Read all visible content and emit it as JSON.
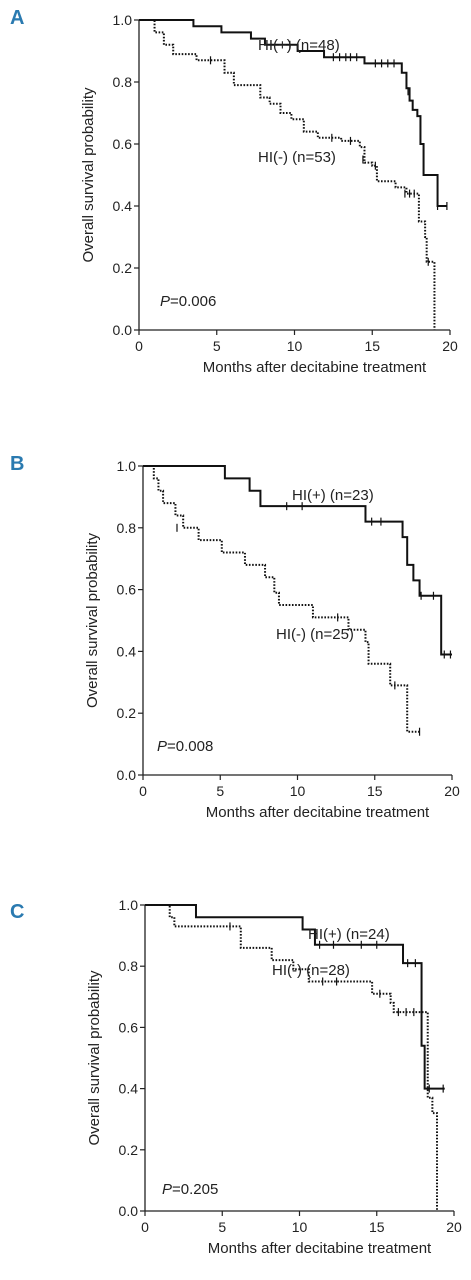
{
  "chart_data": [
    {
      "panel": "A",
      "type": "line",
      "xlabel": "Months after decitabine treatment",
      "ylabel": "Overall survival probability",
      "xlim": [
        0,
        20
      ],
      "ylim": [
        0,
        1
      ],
      "xticks": [
        "0",
        "5",
        "10",
        "15",
        "20"
      ],
      "yticks": [
        "0.0",
        "0.2",
        "0.4",
        "0.6",
        "0.8",
        "1.0"
      ],
      "p_prefix": "P",
      "p_value": "=0.006",
      "series": [
        {
          "name": "HI(+) (n=48)",
          "style": "solid",
          "steps": [
            [
              0,
              1.0
            ],
            [
              3.5,
              0.98
            ],
            [
              5.3,
              0.96
            ],
            [
              7.2,
              0.94
            ],
            [
              8.1,
              0.92
            ],
            [
              9.7,
              0.92
            ],
            [
              10.2,
              0.9
            ],
            [
              11.9,
              0.88
            ],
            [
              14.5,
              0.86
            ],
            [
              16.9,
              0.83
            ],
            [
              17.2,
              0.78
            ],
            [
              17.4,
              0.74
            ],
            [
              17.6,
              0.71
            ],
            [
              17.9,
              0.69
            ],
            [
              18.1,
              0.6
            ],
            [
              18.3,
              0.5
            ],
            [
              19.2,
              0.4
            ],
            [
              19.8,
              0.4
            ]
          ],
          "censored": [
            [
              9.7,
              0.92
            ],
            [
              12.5,
              0.88
            ],
            [
              12.9,
              0.88
            ],
            [
              13.3,
              0.88
            ],
            [
              13.6,
              0.88
            ],
            [
              14.0,
              0.88
            ],
            [
              15.2,
              0.86
            ],
            [
              15.6,
              0.86
            ],
            [
              16.0,
              0.86
            ],
            [
              16.4,
              0.86
            ],
            [
              17.3,
              0.77
            ],
            [
              19.2,
              0.4
            ],
            [
              19.8,
              0.4
            ]
          ]
        },
        {
          "name": "HI(-) (n=53)",
          "style": "dotted",
          "steps": [
            [
              0,
              1.0
            ],
            [
              1.0,
              0.96
            ],
            [
              1.6,
              0.92
            ],
            [
              2.2,
              0.89
            ],
            [
              3.7,
              0.87
            ],
            [
              5.5,
              0.83
            ],
            [
              6.1,
              0.79
            ],
            [
              7.8,
              0.75
            ],
            [
              8.4,
              0.73
            ],
            [
              9.1,
              0.7
            ],
            [
              9.8,
              0.68
            ],
            [
              10.6,
              0.64
            ],
            [
              11.5,
              0.62
            ],
            [
              13.0,
              0.61
            ],
            [
              14.2,
              0.59
            ],
            [
              14.5,
              0.54
            ],
            [
              15.0,
              0.53
            ],
            [
              15.3,
              0.48
            ],
            [
              16.5,
              0.46
            ],
            [
              17.2,
              0.44
            ],
            [
              18.0,
              0.35
            ],
            [
              18.4,
              0.3
            ],
            [
              18.5,
              0.22
            ],
            [
              19.0,
              0.0
            ]
          ],
          "censored": [
            [
              4.6,
              0.87
            ],
            [
              12.4,
              0.62
            ],
            [
              13.6,
              0.61
            ],
            [
              14.4,
              0.55
            ],
            [
              15.2,
              0.53
            ],
            [
              17.1,
              0.44
            ],
            [
              17.4,
              0.44
            ],
            [
              17.7,
              0.44
            ],
            [
              18.6,
              0.22
            ]
          ]
        }
      ]
    },
    {
      "panel": "B",
      "type": "line",
      "xlabel": "Months after decitabine treatment",
      "ylabel": "Overall survival probability",
      "xlim": [
        0,
        20
      ],
      "ylim": [
        0,
        1
      ],
      "xticks": [
        "0",
        "5",
        "10",
        "15",
        "20"
      ],
      "yticks": [
        "0.0",
        "0.2",
        "0.4",
        "0.6",
        "0.8",
        "1.0"
      ],
      "p_prefix": "P",
      "p_value": "=0.008",
      "series": [
        {
          "name": "HI(+) (n=23)",
          "style": "solid",
          "steps": [
            [
              0,
              1.0
            ],
            [
              5.3,
              0.96
            ],
            [
              6.9,
              0.92
            ],
            [
              7.6,
              0.87
            ],
            [
              14.4,
              0.82
            ],
            [
              16.8,
              0.77
            ],
            [
              17.1,
              0.68
            ],
            [
              17.5,
              0.63
            ],
            [
              17.9,
              0.58
            ],
            [
              19.3,
              0.39
            ],
            [
              20.0,
              0.39
            ]
          ],
          "censored": [
            [
              9.3,
              0.87
            ],
            [
              10.3,
              0.87
            ],
            [
              14.8,
              0.82
            ],
            [
              15.4,
              0.82
            ],
            [
              18.0,
              0.58
            ],
            [
              18.8,
              0.58
            ],
            [
              19.5,
              0.39
            ],
            [
              19.9,
              0.39
            ]
          ]
        },
        {
          "name": "HI(-) (n=25)",
          "style": "dotted",
          "steps": [
            [
              0,
              1.0
            ],
            [
              0.7,
              0.96
            ],
            [
              1.0,
              0.92
            ],
            [
              1.3,
              0.88
            ],
            [
              2.1,
              0.84
            ],
            [
              2.6,
              0.8
            ],
            [
              3.6,
              0.76
            ],
            [
              5.1,
              0.72
            ],
            [
              6.6,
              0.68
            ],
            [
              7.9,
              0.64
            ],
            [
              8.5,
              0.59
            ],
            [
              8.8,
              0.55
            ],
            [
              11.0,
              0.51
            ],
            [
              13.3,
              0.47
            ],
            [
              14.4,
              0.43
            ],
            [
              14.6,
              0.36
            ],
            [
              16.0,
              0.29
            ],
            [
              17.1,
              0.14
            ],
            [
              18.0,
              0.14
            ]
          ],
          "censored": [
            [
              2.2,
              0.8
            ],
            [
              12.6,
              0.51
            ],
            [
              16.3,
              0.29
            ],
            [
              17.9,
              0.14
            ]
          ]
        }
      ]
    },
    {
      "panel": "C",
      "type": "line",
      "xlabel": "Months after decitabine treatment",
      "ylabel": "Overall survival probability",
      "xlim": [
        0,
        20
      ],
      "ylim": [
        0,
        1
      ],
      "xticks": [
        "0",
        "5",
        "10",
        "15",
        "20"
      ],
      "yticks": [
        "0.0",
        "0.2",
        "0.4",
        "0.6",
        "0.8",
        "1.0"
      ],
      "p_prefix": "P",
      "p_value": "=0.205",
      "series": [
        {
          "name": "HI(+) (n=24)",
          "style": "solid",
          "steps": [
            [
              0,
              1.0
            ],
            [
              3.3,
              0.96
            ],
            [
              10.2,
              0.92
            ],
            [
              11.0,
              0.87
            ],
            [
              16.7,
              0.81
            ],
            [
              17.9,
              0.54
            ],
            [
              18.1,
              0.4
            ],
            [
              19.4,
              0.4
            ]
          ],
          "censored": [
            [
              11.3,
              0.87
            ],
            [
              12.2,
              0.87
            ],
            [
              14.0,
              0.87
            ],
            [
              15.0,
              0.87
            ],
            [
              17.0,
              0.81
            ],
            [
              17.5,
              0.81
            ],
            [
              18.4,
              0.4
            ],
            [
              19.3,
              0.4
            ]
          ]
        },
        {
          "name": "HI(-) (n=28)",
          "style": "dotted",
          "steps": [
            [
              0,
              1.0
            ],
            [
              1.6,
              0.96
            ],
            [
              1.9,
              0.93
            ],
            [
              6.2,
              0.86
            ],
            [
              8.2,
              0.82
            ],
            [
              9.6,
              0.79
            ],
            [
              10.6,
              0.75
            ],
            [
              14.7,
              0.71
            ],
            [
              15.9,
              0.68
            ],
            [
              16.1,
              0.65
            ],
            [
              18.3,
              0.37
            ],
            [
              18.6,
              0.32
            ],
            [
              18.9,
              0.0
            ]
          ],
          "censored": [
            [
              5.5,
              0.93
            ],
            [
              11.5,
              0.75
            ],
            [
              12.4,
              0.75
            ],
            [
              15.2,
              0.71
            ],
            [
              16.4,
              0.65
            ],
            [
              16.9,
              0.65
            ],
            [
              17.4,
              0.65
            ]
          ]
        }
      ]
    }
  ]
}
